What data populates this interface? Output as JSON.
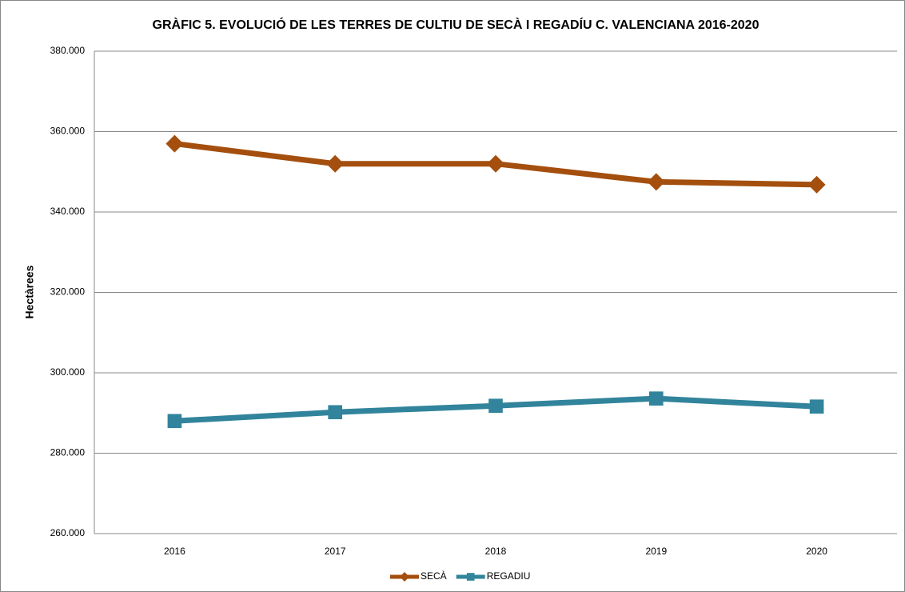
{
  "chart_data": {
    "type": "line",
    "title": "GRÀFIC 5. EVOLUCIÓ DE LES TERRES DE CULTIU DE SECÀ I REGADÍU C. VALENCIANA 2016-2020",
    "y_label": "Hectàrees",
    "categories": [
      "2016",
      "2017",
      "2018",
      "2019",
      "2020"
    ],
    "series": [
      {
        "name": "SECÀ",
        "color": "#a44f0e",
        "marker": "diamond",
        "values": [
          357000,
          352000,
          352000,
          347500,
          346800
        ]
      },
      {
        "name": "REGADIU",
        "color": "#31849b",
        "marker": "square",
        "values": [
          288000,
          290200,
          291800,
          293600,
          291600
        ]
      }
    ],
    "ylim": [
      260000,
      380000
    ],
    "yticks": [
      {
        "value": 260000,
        "label": "260.000"
      },
      {
        "value": 280000,
        "label": "280.000"
      },
      {
        "value": 300000,
        "label": "300.000"
      },
      {
        "value": 320000,
        "label": "320.000"
      },
      {
        "value": 340000,
        "label": "340.000"
      },
      {
        "value": 360000,
        "label": "360.000"
      },
      {
        "value": 380000,
        "label": "380.000"
      }
    ],
    "grid": true,
    "legend": "bottom"
  }
}
